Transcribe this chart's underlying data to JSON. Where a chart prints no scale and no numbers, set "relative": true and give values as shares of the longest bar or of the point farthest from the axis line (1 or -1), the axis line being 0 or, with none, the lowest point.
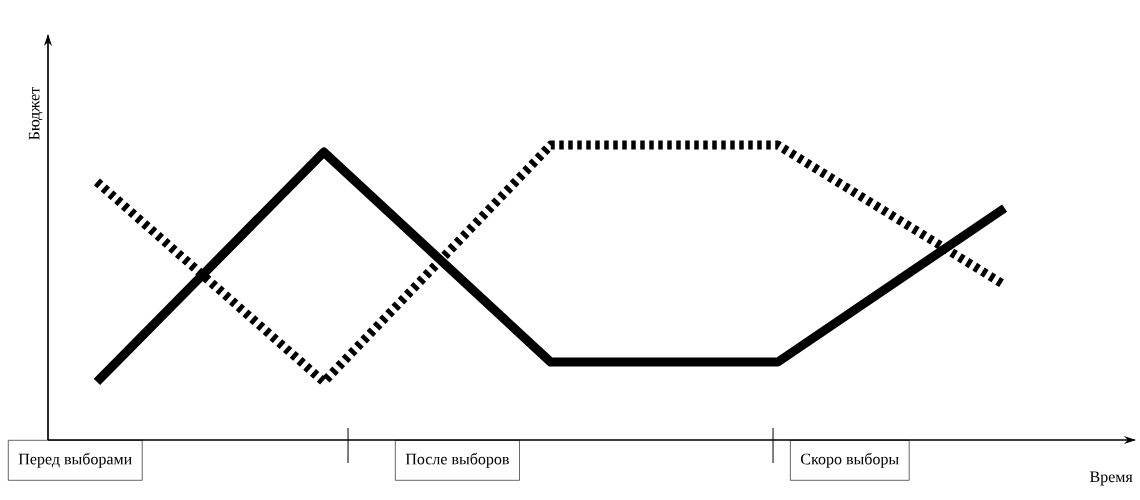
{
  "chart_data": {
    "type": "line",
    "relative": true,
    "xlabel": "Время",
    "ylabel": "Бюджет",
    "categories": [
      null,
      null,
      null,
      null,
      null
    ],
    "annotations": [
      "Перед выборами",
      "После выборов",
      "Скоро выборы"
    ],
    "series": [
      {
        "color": "#000000",
        "line_style": "solid",
        "values": [
          0.197,
          0.976,
          0.264,
          0.264,
          0.786
        ]
      },
      {
        "color": "#000000",
        "line_style": "dotted",
        "values": [
          0.875,
          0.197,
          1,
          1,
          0.525
        ]
      }
    ]
  }
}
